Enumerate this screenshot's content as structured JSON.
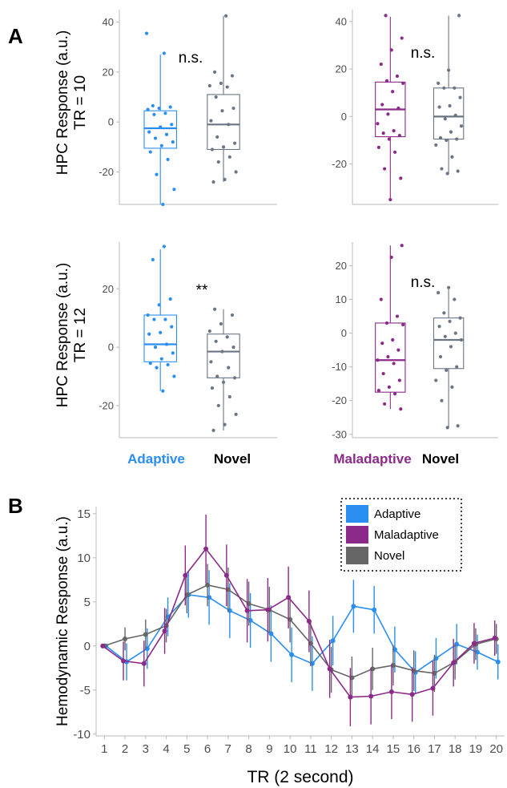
{
  "panel_labels": {
    "a": "A",
    "b": "B"
  },
  "colors": {
    "adaptive": "#2a8ef0",
    "maladaptive": "#8b2a88",
    "novel": "#6b7584",
    "novel_line": "#666666"
  },
  "category_labels": {
    "adaptive": "Adaptive",
    "maladaptive": "Maladaptive",
    "novel": "Novel"
  },
  "chart_data": [
    {
      "type": "box",
      "panel": "A",
      "row_label": [
        "HPC Response (a.u.)",
        "TR = 10"
      ],
      "categories": [
        "Adaptive",
        "Novel"
      ],
      "ylim": [
        -33,
        45
      ],
      "yticks": [
        -20,
        0,
        20,
        40
      ],
      "ytick_labels": [
        "-20",
        "0",
        "20",
        "40"
      ],
      "annotation": "n.s.",
      "boxes": [
        {
          "name": "Adaptive",
          "color": "adaptive",
          "q1": -10.5,
          "median": -2.5,
          "q3": 4.5,
          "whisker_low": -33,
          "whisker_high": 27,
          "points": [
            35.5,
            27.5,
            6.5,
            6,
            5.5,
            5,
            3.5,
            3,
            -1,
            -2,
            -4,
            -5,
            -6.5,
            -8,
            -9.5,
            -12,
            -15,
            -21,
            -27,
            -33
          ]
        },
        {
          "name": "Novel",
          "color": "novel",
          "q1": -11,
          "median": -1,
          "q3": 11,
          "whisker_low": -24,
          "whisker_high": 42.5,
          "points": [
            42.5,
            20,
            18.5,
            15.5,
            14.5,
            14,
            10,
            5.5,
            4.5,
            0.5,
            -1,
            -6,
            -8.5,
            -10,
            -11,
            -14,
            -16,
            -20,
            -23,
            -24
          ]
        }
      ]
    },
    {
      "type": "box",
      "panel": "A",
      "categories": [
        "Maladaptive",
        "Novel"
      ],
      "ylim": [
        -37,
        45
      ],
      "yticks": [
        -20,
        0,
        20,
        40
      ],
      "ytick_labels": [
        "-20",
        "0",
        "20",
        "40"
      ],
      "annotation": "n.s.",
      "boxes": [
        {
          "name": "Maladaptive",
          "color": "maladaptive",
          "q1": -8.5,
          "median": 3,
          "q3": 14.5,
          "whisker_low": -35,
          "whisker_high": 42,
          "points": [
            42.5,
            33,
            28,
            22,
            17,
            15,
            14,
            10.5,
            5,
            3.5,
            1,
            -3,
            -6,
            -7,
            -8,
            -9.5,
            -13,
            -15,
            -22,
            -26,
            -35
          ]
        },
        {
          "name": "Novel",
          "color": "novel",
          "q1": -9.5,
          "median": 0,
          "q3": 12,
          "whisker_low": -24,
          "whisker_high": 42.5,
          "points": [
            42.5,
            19.5,
            14,
            12,
            12,
            8,
            4.5,
            4,
            0.5,
            -1,
            -4,
            -6.5,
            -9,
            -9.5,
            -10,
            -12,
            -17,
            -22,
            -23,
            -24
          ]
        }
      ]
    },
    {
      "type": "box",
      "panel": "A",
      "row_label": [
        "HPC Response (a.u.)",
        "TR = 12"
      ],
      "categories": [
        "Adaptive",
        "Novel"
      ],
      "ylim": [
        -31,
        36
      ],
      "yticks": [
        -20,
        0,
        20
      ],
      "ytick_labels": [
        "-20",
        "0",
        "20"
      ],
      "annotation": "**",
      "boxes": [
        {
          "name": "Adaptive",
          "color": "adaptive",
          "q1": -5,
          "median": 1,
          "q3": 11,
          "whisker_low": -15,
          "whisker_high": 33.5,
          "points": [
            34.5,
            30,
            16.5,
            14.5,
            11,
            9.5,
            9.5,
            7,
            5,
            4.5,
            1,
            0,
            -2,
            -4,
            -5.5,
            -6,
            -7,
            -10,
            -15
          ]
        },
        {
          "name": "Novel",
          "color": "novel",
          "q1": -10.5,
          "median": -1.5,
          "q3": 4.5,
          "whisker_low": -28.5,
          "whisker_high": 13,
          "points": [
            13,
            11,
            8,
            5.5,
            3.5,
            2,
            0,
            -1.5,
            -5,
            -7,
            -10,
            -10.5,
            -12,
            -14,
            -17,
            -20,
            -23,
            -26.5,
            -28.5
          ]
        }
      ]
    },
    {
      "type": "box",
      "panel": "A",
      "categories": [
        "Maladaptive",
        "Novel"
      ],
      "ylim": [
        -31,
        27
      ],
      "yticks": [
        -30,
        -20,
        -10,
        0,
        10,
        20
      ],
      "ytick_labels": [
        "-30",
        "-20",
        "-10",
        "0",
        "10",
        "20"
      ],
      "annotation": "n.s.",
      "boxes": [
        {
          "name": "Maladaptive",
          "color": "maladaptive",
          "q1": -17.5,
          "median": -8,
          "q3": 3,
          "whisker_low": -22.5,
          "whisker_high": 26,
          "points": [
            26,
            22.5,
            10,
            5,
            3,
            2.5,
            -2,
            -3,
            -5,
            -7,
            -8,
            -9,
            -12,
            -14,
            -16,
            -17,
            -18,
            -21,
            -22.5
          ]
        },
        {
          "name": "Novel",
          "color": "novel",
          "q1": -10.5,
          "median": -2,
          "q3": 4.5,
          "whisker_low": -28,
          "whisker_high": 13,
          "points": [
            13.5,
            12,
            10,
            6,
            4.5,
            3.5,
            2,
            0,
            -1,
            -2,
            -4,
            -7,
            -10,
            -11,
            -14,
            -16,
            -20,
            -27.5,
            -28
          ]
        }
      ]
    },
    {
      "type": "line",
      "panel": "B",
      "title": "",
      "xlabel": "TR (2 second)",
      "ylabel": "Hemodynamic Response (a.u.)",
      "x": [
        1,
        2,
        3,
        4,
        5,
        6,
        7,
        8,
        9,
        10,
        11,
        12,
        13,
        14,
        15,
        16,
        17,
        18,
        19,
        20
      ],
      "xlim": [
        0.6,
        20.4
      ],
      "ylim": [
        -10.2,
        15.8
      ],
      "yticks": [
        -10,
        -5,
        0,
        5,
        10,
        15
      ],
      "ytick_labels": [
        "-10",
        "-5",
        "0",
        "5",
        "10",
        "15"
      ],
      "grid": false,
      "legend_position": "top-right",
      "series": [
        {
          "name": "Adaptive",
          "color": "adaptive",
          "values": [
            0,
            -1.8,
            -0.3,
            3.3,
            5.8,
            5.5,
            4,
            2.9,
            1.4,
            -1,
            -2,
            0.6,
            4.5,
            4.1,
            -0.4,
            -3,
            -1.4,
            0.2,
            -0.7,
            -1.8
          ],
          "errors": [
            0.1,
            2.1,
            2.3,
            2.2,
            2.6,
            3.1,
            3.1,
            3.1,
            3.2,
            3.1,
            3.1,
            2.8,
            3.0,
            2.7,
            2.6,
            2.4,
            2.3,
            2.3,
            2.0,
            2.0
          ]
        },
        {
          "name": "Maladaptive",
          "color": "maladaptive",
          "values": [
            0,
            -1.7,
            -2,
            1.7,
            8,
            11,
            8,
            4,
            4.1,
            5.5,
            2.8,
            -2.6,
            -5.8,
            -5.7,
            -5.2,
            -5.5,
            -4.8,
            -1.9,
            0.3,
            0.9
          ],
          "errors": [
            0.1,
            2.2,
            2.6,
            2.6,
            3.4,
            3.9,
            3.5,
            3.6,
            3.6,
            3.5,
            3.5,
            3.3,
            3.3,
            3.2,
            3.1,
            3.1,
            3.1,
            2.7,
            2.3,
            2.0
          ]
        },
        {
          "name": "Novel",
          "color": "novel_line",
          "values": [
            0,
            0.8,
            1.3,
            2.3,
            5.8,
            6.9,
            6.4,
            4.8,
            4.1,
            3,
            0.3,
            -2.7,
            -3.6,
            -2.6,
            -2.2,
            -2.8,
            -3.1,
            -1.8,
            0.2,
            0.8
          ],
          "errors": [
            0.1,
            1.3,
            1.7,
            1.9,
            2.1,
            2.4,
            2.5,
            2.5,
            2.6,
            2.6,
            2.6,
            2.6,
            2.4,
            2.4,
            2.3,
            2.3,
            2.1,
            2.0,
            1.8,
            1.7
          ]
        }
      ]
    }
  ]
}
